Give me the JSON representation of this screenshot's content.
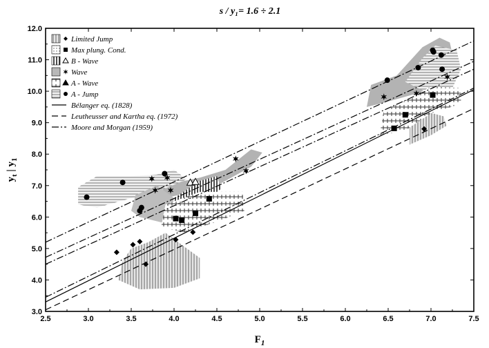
{
  "chart_data": {
    "type": "scatter",
    "title": "s / y₁= 1.6 ÷ 2.1",
    "xlabel": "F",
    "xlabel_sub": "1",
    "ylabel": "y",
    "ylabel_sub1": "t",
    "ylabel_mid": " | y",
    "ylabel_sub2": "1",
    "xlim": [
      2.5,
      7.5
    ],
    "ylim": [
      3.0,
      12.0
    ],
    "xticks": [
      "2.5",
      "3.0",
      "3.5",
      "4.0",
      "4.5",
      "5.0",
      "5.5",
      "6.0",
      "6.5",
      "7.0",
      "7.5"
    ],
    "yticks": [
      "3.0",
      "4.0",
      "5.0",
      "6.0",
      "7.0",
      "8.0",
      "9.0",
      "10.0",
      "11.0",
      "12.0"
    ],
    "legend_position": "top-left",
    "legend": [
      {
        "label": "Limited Jump",
        "marker": "diamond",
        "fill": "vlines"
      },
      {
        "label": "Max plung. Cond.",
        "marker": "square",
        "fill": "dots"
      },
      {
        "label": "B - Wave",
        "marker": "triangle-open",
        "fill": "vbars"
      },
      {
        "label": "Wave",
        "marker": "star",
        "fill": "gray"
      },
      {
        "label": "A - Wave",
        "marker": "triangle",
        "fill": "cross"
      },
      {
        "label": "A - Jump",
        "marker": "circle",
        "fill": "hlines"
      },
      {
        "label": "Bélanger eq. (1828)",
        "line": "solid"
      },
      {
        "label": "Leutheusser and Kartha eq. (1972)",
        "line": "dashed"
      },
      {
        "label": "Moore and Morgan (1959)",
        "line": "dashdot"
      }
    ],
    "lines": [
      {
        "name": "Bélanger eq. (1828)",
        "style": "solid",
        "x": [
          2.5,
          7.5
        ],
        "y": [
          3.3,
          10.05
        ]
      },
      {
        "name": "Leutheusser and Kartha eq. (1972)",
        "style": "dashed",
        "x": [
          2.5,
          7.5
        ],
        "y": [
          3.05,
          9.45
        ]
      },
      {
        "name": "Moore and Morgan (1959)",
        "style": "dashdot",
        "x": [
          2.5,
          7.5
        ],
        "y": [
          5.2,
          11.6
        ]
      },
      {
        "name": "Moore and Morgan (1959)",
        "style": "dashdot",
        "x": [
          2.5,
          7.5
        ],
        "y": [
          4.72,
          10.95
        ]
      },
      {
        "name": "Moore and Morgan (1959)",
        "style": "dashdot",
        "x": [
          2.5,
          7.5
        ],
        "y": [
          4.5,
          10.7
        ]
      },
      {
        "name": "Moore and Morgan (1959)",
        "style": "dashdot",
        "x": [
          2.5,
          7.5
        ],
        "y": [
          3.45,
          10.1
        ]
      }
    ],
    "series": [
      {
        "name": "Limited Jump",
        "marker": "diamond",
        "points": [
          [
            3.33,
            4.88
          ],
          [
            3.52,
            5.12
          ],
          [
            3.6,
            5.22
          ],
          [
            3.67,
            4.5
          ],
          [
            4.02,
            5.28
          ],
          [
            4.22,
            5.52
          ],
          [
            6.92,
            8.8
          ]
        ]
      },
      {
        "name": "Max plung. Cond.",
        "marker": "square",
        "points": [
          [
            4.02,
            5.95
          ],
          [
            4.09,
            5.9
          ],
          [
            4.25,
            6.12
          ],
          [
            4.41,
            6.58
          ],
          [
            6.57,
            8.82
          ],
          [
            6.7,
            9.25
          ],
          [
            7.02,
            9.88
          ]
        ]
      },
      {
        "name": "B - Wave",
        "marker": "triangle-open",
        "points": [
          [
            4.19,
            7.1
          ],
          [
            4.25,
            7.12
          ]
        ]
      },
      {
        "name": "Wave",
        "marker": "star",
        "points": [
          [
            3.74,
            7.22
          ],
          [
            3.78,
            6.85
          ],
          [
            3.92,
            7.25
          ],
          [
            3.96,
            6.85
          ],
          [
            4.72,
            7.85
          ],
          [
            4.84,
            7.47
          ],
          [
            6.45,
            9.82
          ],
          [
            6.83,
            9.93
          ],
          [
            7.19,
            10.45
          ]
        ]
      },
      {
        "name": "A - Jump",
        "marker": "circle",
        "points": [
          [
            2.98,
            6.63
          ],
          [
            3.4,
            7.1
          ],
          [
            3.6,
            6.2
          ],
          [
            3.62,
            6.3
          ],
          [
            3.89,
            7.38
          ],
          [
            6.49,
            10.35
          ],
          [
            6.85,
            10.75
          ],
          [
            7.02,
            11.3
          ],
          [
            7.03,
            11.25
          ],
          [
            7.12,
            11.15
          ],
          [
            7.13,
            10.7
          ],
          [
            7.02,
            9.88
          ]
        ]
      }
    ]
  }
}
